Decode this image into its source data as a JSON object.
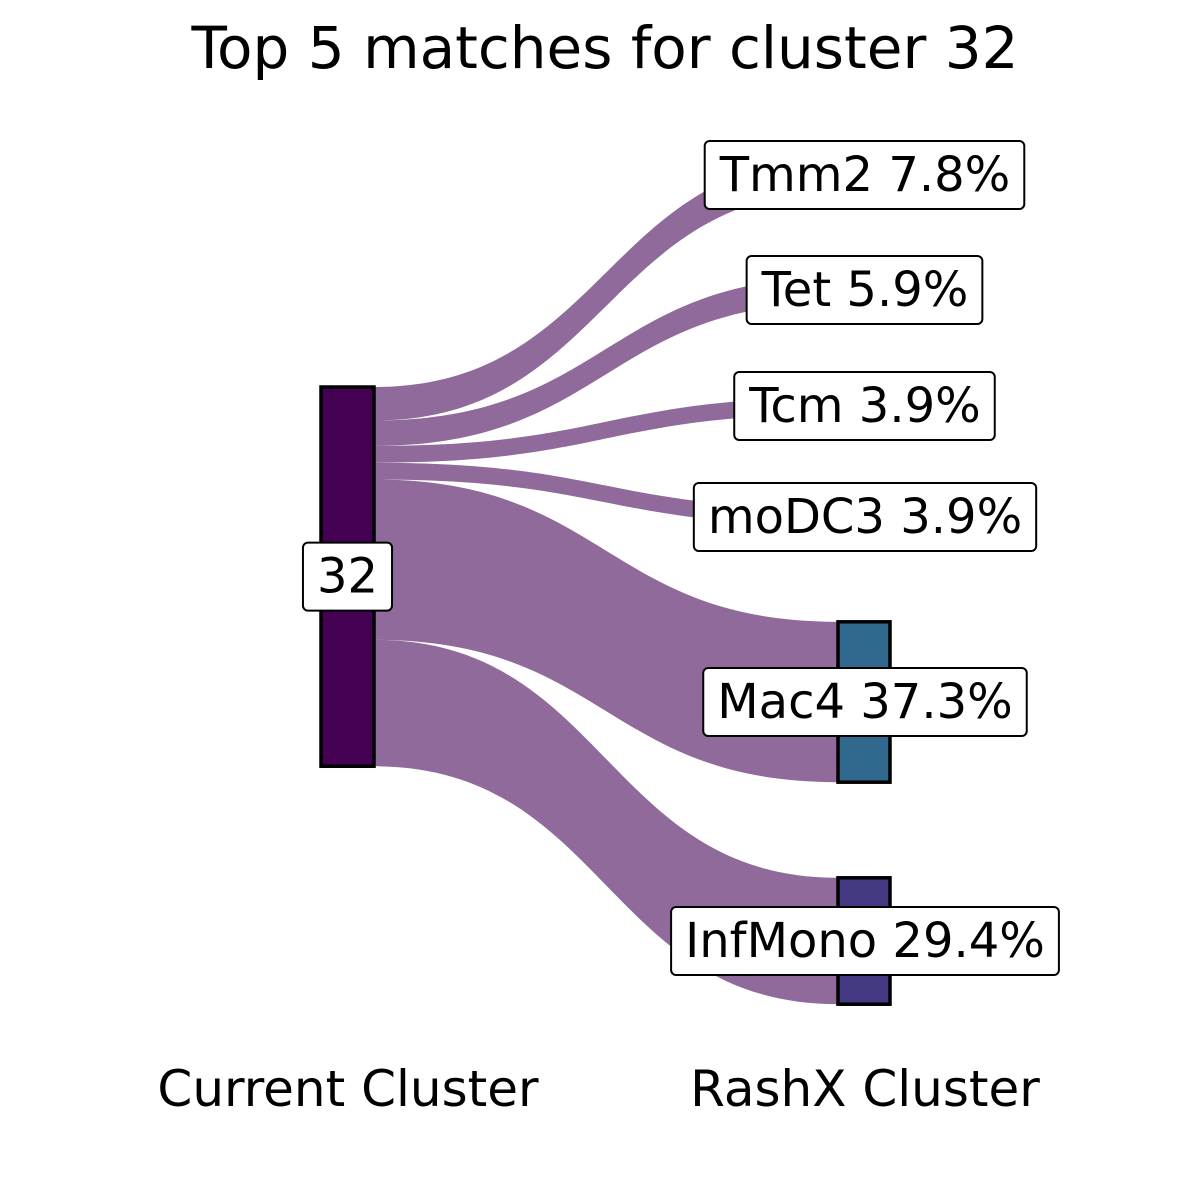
{
  "chart_data": {
    "type": "sankey",
    "title": "Top 5 matches for cluster 32",
    "source_axis_label": "Current Cluster",
    "target_axis_label": "RashX Cluster",
    "source": {
      "name": "32",
      "color": "#440154"
    },
    "link_color": "#8f6a9a",
    "targets": [
      {
        "name": "Tmm2",
        "percent": 7.8,
        "label": "Tmm2 7.8%",
        "node_color": null
      },
      {
        "name": "Tet",
        "percent": 5.9,
        "label": "Tet 5.9%",
        "node_color": null
      },
      {
        "name": "Tcm",
        "percent": 3.9,
        "label": "Tcm 3.9%",
        "node_color": null
      },
      {
        "name": "moDC3",
        "percent": 3.9,
        "label": "moDC3 3.9%",
        "node_color": null
      },
      {
        "name": "Mac4",
        "percent": 37.3,
        "label": "Mac4 37.3%",
        "node_color": "#31688e"
      },
      {
        "name": "InfMono",
        "percent": 29.4,
        "label": "InfMono 29.4%",
        "node_color": "#443983"
      }
    ]
  }
}
